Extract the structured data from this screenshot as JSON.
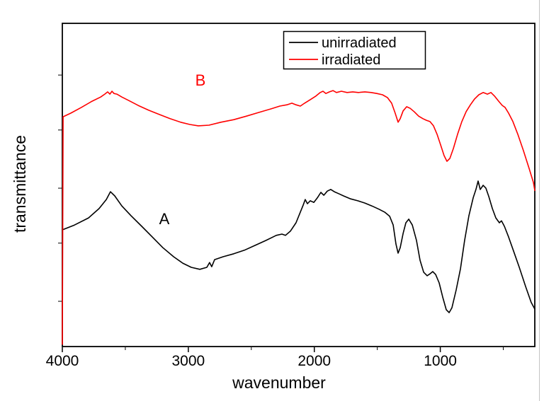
{
  "figure": {
    "background": "#ffffff",
    "edge_line_color": "#c4c4c4"
  },
  "chart_data": {
    "type": "line",
    "title": "",
    "xlabel": "wavenumber",
    "ylabel": "transmittance",
    "xlim": [
      4000,
      250
    ],
    "ylim": [
      0,
      1
    ],
    "x_axis_reversed": true,
    "grid": false,
    "x_ticks": [
      4000,
      3000,
      2000,
      1000
    ],
    "x_tick_labels": [
      "4000",
      "3000",
      "2000",
      "1000"
    ],
    "x_minor_ticks": [
      3500,
      2500,
      1500,
      500
    ],
    "y_minor_ticks": [
      0.14,
      0.32,
      0.49,
      0.67,
      0.84
    ],
    "legend": {
      "position": "top-center",
      "border": true,
      "entries": [
        {
          "label": "unirradiated",
          "color": "#000000"
        },
        {
          "label": "irradiated",
          "color": "#ff0000"
        }
      ]
    },
    "annotations": [
      {
        "text": "A",
        "color": "#000000",
        "x": 3190,
        "y": 0.4
      },
      {
        "text": "B",
        "color": "#ff0000",
        "x": 2900,
        "y": 0.825
      }
    ],
    "series": [
      {
        "name": "unirradiated",
        "color": "#000000",
        "points": [
          [
            4000,
            0.361
          ],
          [
            3904,
            0.376
          ],
          [
            3792,
            0.398
          ],
          [
            3708,
            0.427
          ],
          [
            3651,
            0.455
          ],
          [
            3618,
            0.479
          ],
          [
            3584,
            0.466
          ],
          [
            3528,
            0.435
          ],
          [
            3455,
            0.405
          ],
          [
            3370,
            0.372
          ],
          [
            3286,
            0.339
          ],
          [
            3202,
            0.306
          ],
          [
            3117,
            0.278
          ],
          [
            3044,
            0.258
          ],
          [
            2977,
            0.245
          ],
          [
            2909,
            0.239
          ],
          [
            2853,
            0.245
          ],
          [
            2831,
            0.26
          ],
          [
            2814,
            0.247
          ],
          [
            2791,
            0.269
          ],
          [
            2724,
            0.278
          ],
          [
            2639,
            0.287
          ],
          [
            2555,
            0.298
          ],
          [
            2471,
            0.313
          ],
          [
            2386,
            0.328
          ],
          [
            2302,
            0.344
          ],
          [
            2257,
            0.348
          ],
          [
            2229,
            0.344
          ],
          [
            2190,
            0.357
          ],
          [
            2145,
            0.383
          ],
          [
            2111,
            0.416
          ],
          [
            2088,
            0.438
          ],
          [
            2072,
            0.455
          ],
          [
            2055,
            0.442
          ],
          [
            2032,
            0.451
          ],
          [
            2004,
            0.446
          ],
          [
            1976,
            0.46
          ],
          [
            1948,
            0.477
          ],
          [
            1925,
            0.468
          ],
          [
            1897,
            0.481
          ],
          [
            1869,
            0.486
          ],
          [
            1841,
            0.479
          ],
          [
            1807,
            0.473
          ],
          [
            1768,
            0.466
          ],
          [
            1712,
            0.457
          ],
          [
            1655,
            0.451
          ],
          [
            1599,
            0.444
          ],
          [
            1543,
            0.435
          ],
          [
            1487,
            0.425
          ],
          [
            1442,
            0.416
          ],
          [
            1402,
            0.403
          ],
          [
            1374,
            0.376
          ],
          [
            1352,
            0.317
          ],
          [
            1335,
            0.289
          ],
          [
            1318,
            0.306
          ],
          [
            1295,
            0.35
          ],
          [
            1273,
            0.383
          ],
          [
            1250,
            0.394
          ],
          [
            1222,
            0.376
          ],
          [
            1189,
            0.328
          ],
          [
            1161,
            0.267
          ],
          [
            1132,
            0.23
          ],
          [
            1104,
            0.219
          ],
          [
            1082,
            0.225
          ],
          [
            1060,
            0.232
          ],
          [
            1037,
            0.223
          ],
          [
            1009,
            0.197
          ],
          [
            981,
            0.153
          ],
          [
            953,
            0.114
          ],
          [
            930,
            0.105
          ],
          [
            908,
            0.12
          ],
          [
            874,
            0.175
          ],
          [
            840,
            0.241
          ],
          [
            807,
            0.328
          ],
          [
            773,
            0.405
          ],
          [
            739,
            0.46
          ],
          [
            717,
            0.486
          ],
          [
            700,
            0.512
          ],
          [
            683,
            0.486
          ],
          [
            660,
            0.499
          ],
          [
            638,
            0.49
          ],
          [
            615,
            0.464
          ],
          [
            587,
            0.427
          ],
          [
            559,
            0.398
          ],
          [
            531,
            0.383
          ],
          [
            514,
            0.389
          ],
          [
            491,
            0.372
          ],
          [
            458,
            0.339
          ],
          [
            418,
            0.295
          ],
          [
            373,
            0.245
          ],
          [
            323,
            0.186
          ],
          [
            278,
            0.136
          ],
          [
            250,
            0.116
          ]
        ]
      },
      {
        "name": "irradiated",
        "color": "#ff0000",
        "points": [
          [
            4000,
            0.007
          ],
          [
            3994,
            0.711
          ],
          [
            3933,
            0.722
          ],
          [
            3848,
            0.74
          ],
          [
            3764,
            0.759
          ],
          [
            3696,
            0.772
          ],
          [
            3663,
            0.781
          ],
          [
            3640,
            0.788
          ],
          [
            3623,
            0.781
          ],
          [
            3606,
            0.79
          ],
          [
            3590,
            0.783
          ],
          [
            3567,
            0.781
          ],
          [
            3528,
            0.772
          ],
          [
            3472,
            0.761
          ],
          [
            3398,
            0.746
          ],
          [
            3314,
            0.731
          ],
          [
            3230,
            0.718
          ],
          [
            3145,
            0.705
          ],
          [
            3061,
            0.694
          ],
          [
            2988,
            0.687
          ],
          [
            2921,
            0.683
          ],
          [
            2836,
            0.685
          ],
          [
            2741,
            0.694
          ],
          [
            2639,
            0.702
          ],
          [
            2538,
            0.713
          ],
          [
            2443,
            0.724
          ],
          [
            2347,
            0.735
          ],
          [
            2274,
            0.744
          ],
          [
            2218,
            0.748
          ],
          [
            2178,
            0.753
          ],
          [
            2145,
            0.748
          ],
          [
            2111,
            0.744
          ],
          [
            2077,
            0.753
          ],
          [
            2032,
            0.764
          ],
          [
            1987,
            0.775
          ],
          [
            1953,
            0.786
          ],
          [
            1931,
            0.79
          ],
          [
            1908,
            0.783
          ],
          [
            1880,
            0.788
          ],
          [
            1852,
            0.792
          ],
          [
            1824,
            0.786
          ],
          [
            1785,
            0.79
          ],
          [
            1740,
            0.786
          ],
          [
            1695,
            0.788
          ],
          [
            1650,
            0.786
          ],
          [
            1599,
            0.788
          ],
          [
            1549,
            0.786
          ],
          [
            1504,
            0.783
          ],
          [
            1459,
            0.779
          ],
          [
            1419,
            0.77
          ],
          [
            1386,
            0.753
          ],
          [
            1358,
            0.722
          ],
          [
            1335,
            0.694
          ],
          [
            1318,
            0.705
          ],
          [
            1295,
            0.729
          ],
          [
            1267,
            0.742
          ],
          [
            1239,
            0.737
          ],
          [
            1206,
            0.726
          ],
          [
            1172,
            0.713
          ],
          [
            1138,
            0.705
          ],
          [
            1110,
            0.7
          ],
          [
            1082,
            0.696
          ],
          [
            1054,
            0.683
          ],
          [
            1026,
            0.657
          ],
          [
            998,
            0.624
          ],
          [
            970,
            0.591
          ],
          [
            947,
            0.573
          ],
          [
            924,
            0.582
          ],
          [
            896,
            0.613
          ],
          [
            863,
            0.657
          ],
          [
            829,
            0.696
          ],
          [
            795,
            0.727
          ],
          [
            761,
            0.748
          ],
          [
            728,
            0.766
          ],
          [
            694,
            0.779
          ],
          [
            660,
            0.786
          ],
          [
            626,
            0.781
          ],
          [
            598,
            0.786
          ],
          [
            570,
            0.775
          ],
          [
            537,
            0.759
          ],
          [
            508,
            0.746
          ],
          [
            486,
            0.74
          ],
          [
            458,
            0.722
          ],
          [
            424,
            0.696
          ],
          [
            385,
            0.657
          ],
          [
            340,
            0.606
          ],
          [
            295,
            0.551
          ],
          [
            261,
            0.508
          ],
          [
            250,
            0.483
          ]
        ]
      }
    ]
  }
}
